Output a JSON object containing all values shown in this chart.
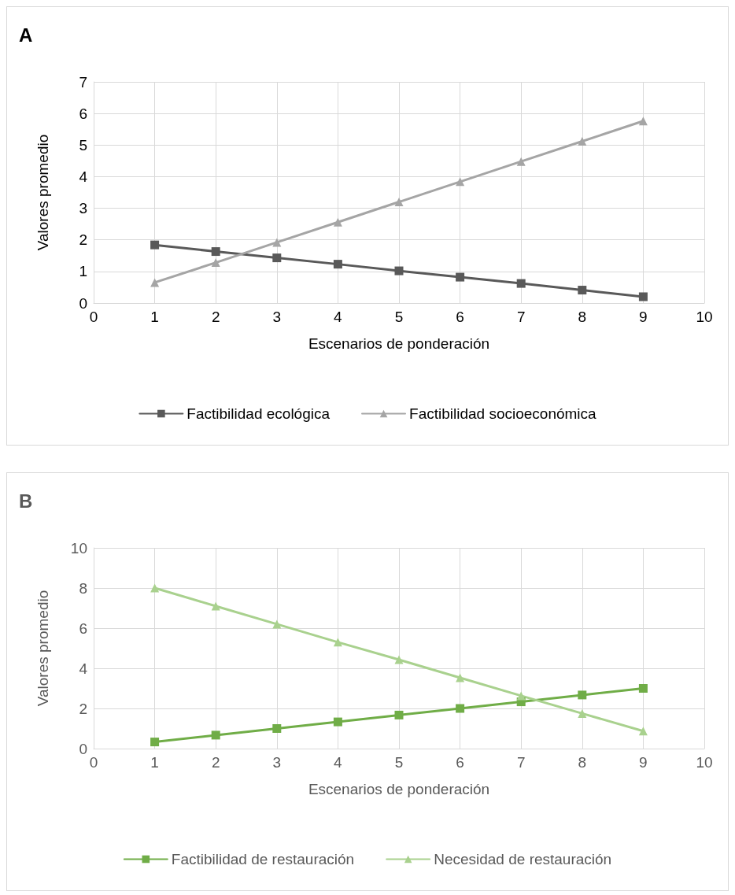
{
  "chart_data": [
    {
      "type": "line",
      "title": "A",
      "xlabel": "Escenarios de ponderación",
      "ylabel": "Valores promedio",
      "xlim": [
        0,
        10
      ],
      "xticks": [
        0,
        1,
        2,
        3,
        4,
        5,
        6,
        7,
        8,
        9,
        10
      ],
      "ylim": [
        0,
        7
      ],
      "yticks": [
        0,
        1,
        2,
        3,
        4,
        5,
        6,
        7
      ],
      "grid": true,
      "legend": "bottom",
      "line_style": "solid",
      "x": [
        1,
        2,
        3,
        4,
        5,
        6,
        7,
        8,
        9
      ],
      "series": [
        {
          "name": "Factibilidad ecológica",
          "color": "#595959",
          "marker": "square",
          "values": [
            1.84,
            1.63,
            1.43,
            1.23,
            1.02,
            0.82,
            0.62,
            0.41,
            0.2
          ]
        },
        {
          "name": "Factibilidad socioeconómica",
          "color": "#a5a5a5",
          "marker": "triangle",
          "values": [
            0.65,
            1.28,
            1.92,
            2.56,
            3.2,
            3.84,
            4.48,
            5.12,
            5.76
          ]
        }
      ]
    },
    {
      "type": "line",
      "title": "B",
      "xlabel": "Escenarios de ponderación",
      "ylabel": "Valores promedio",
      "xlim": [
        0,
        10
      ],
      "xticks": [
        0,
        1,
        2,
        3,
        4,
        5,
        6,
        7,
        8,
        9,
        10
      ],
      "ylim": [
        0,
        10
      ],
      "yticks": [
        0,
        2,
        4,
        6,
        8,
        10
      ],
      "grid": true,
      "legend": "bottom",
      "line_style": "solid",
      "x": [
        1,
        2,
        3,
        4,
        5,
        6,
        7,
        8,
        9
      ],
      "series": [
        {
          "name": "Factibilidad de restauración",
          "color": "#70ad47",
          "marker": "square",
          "values": [
            0.33,
            0.67,
            1.0,
            1.33,
            1.67,
            2.0,
            2.33,
            2.67,
            3.0
          ]
        },
        {
          "name": "Necesidad de restauración",
          "color": "#a9d18e",
          "marker": "triangle",
          "values": [
            8.0,
            7.1,
            6.2,
            5.3,
            4.43,
            3.53,
            2.63,
            1.75,
            0.87
          ]
        }
      ]
    }
  ]
}
